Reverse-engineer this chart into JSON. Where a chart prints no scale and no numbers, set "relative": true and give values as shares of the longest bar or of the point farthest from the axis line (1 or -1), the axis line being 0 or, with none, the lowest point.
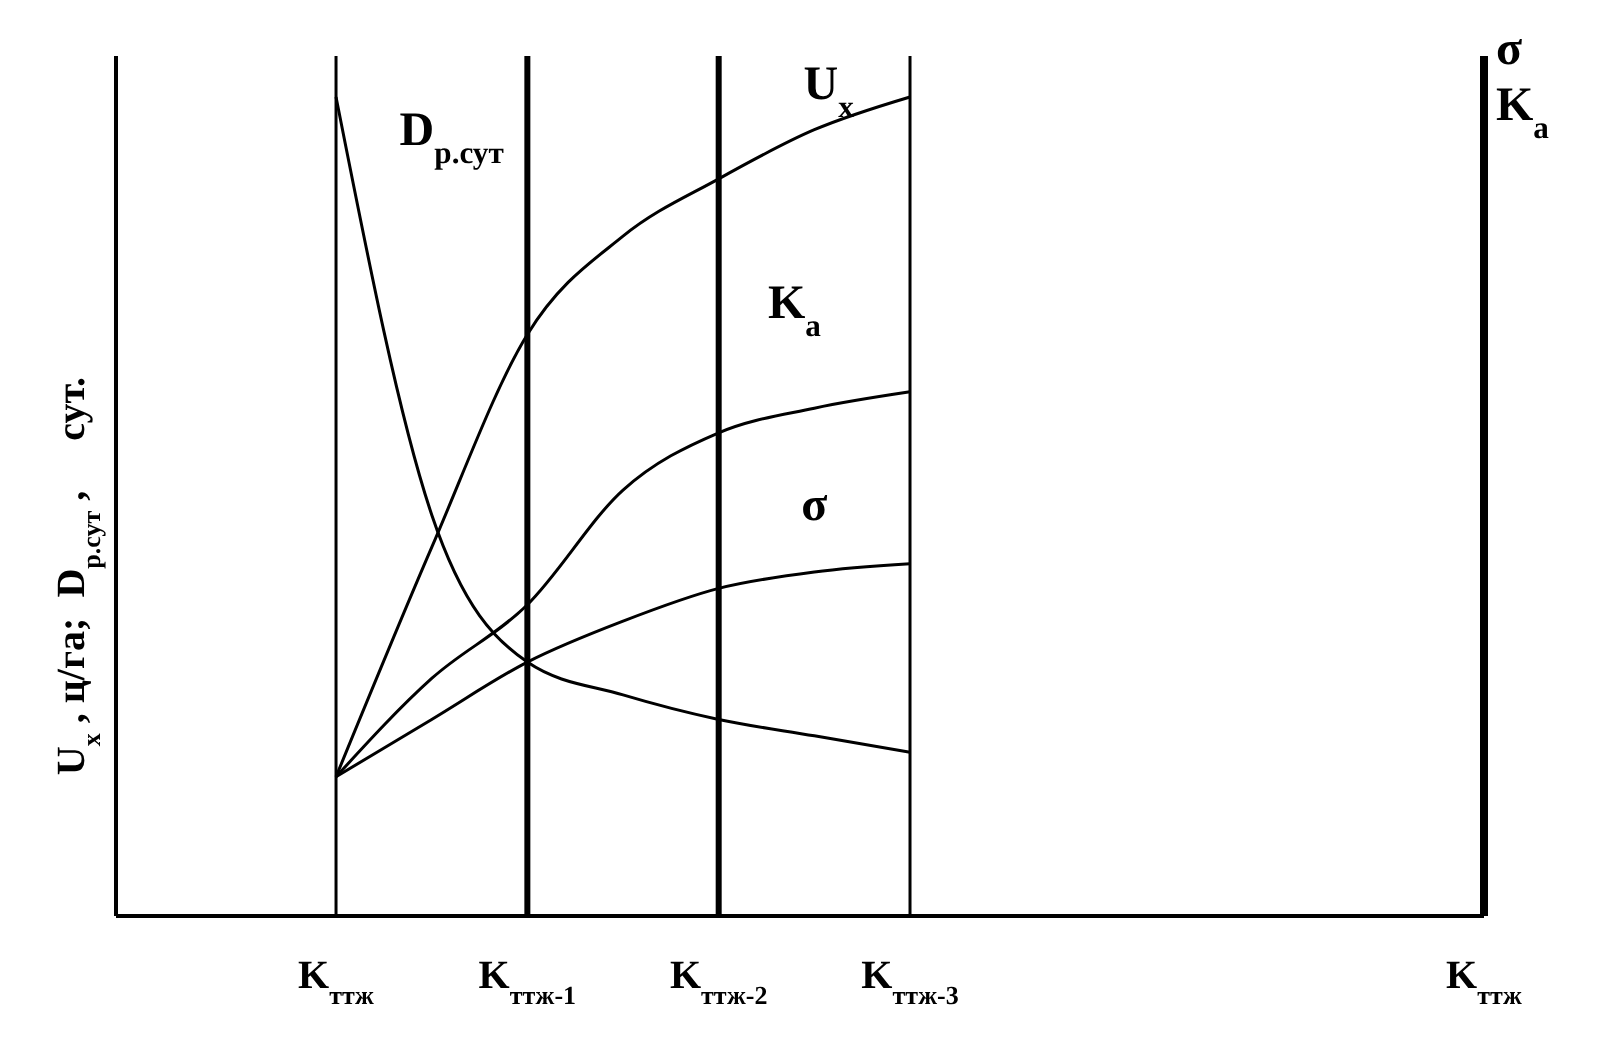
{
  "chart_data": {
    "type": "line",
    "relative": true,
    "xlabel": null,
    "ylabel": "U$_{x}$ , ц/га;  D$_{р.сут}$ ,     сут.",
    "y2label": "σ K$_{a}$",
    "categories": [
      "K$_{ттж}$",
      null,
      "K$_{ттж-1}$",
      null,
      "K$_{ттж-2}$",
      null,
      "K$_{ттж-3}$",
      null,
      null,
      null,
      null,
      null,
      "K$_{ттж}$"
    ],
    "series": [
      {
        "name": "U$_{x}$",
        "color": "#000000",
        "values": [
          0.17,
          0.45,
          0.71,
          0.83,
          0.9,
          0.96,
          1.0,
          null,
          null,
          null,
          null,
          null,
          null
        ]
      },
      {
        "name": "K$_{a}$",
        "color": "#000000",
        "values": [
          0.17,
          0.29,
          0.38,
          0.52,
          0.59,
          0.62,
          0.64,
          null,
          null,
          null,
          null,
          null,
          null
        ]
      },
      {
        "name": "σ",
        "color": "#000000",
        "values": [
          0.17,
          0.24,
          0.31,
          0.36,
          0.4,
          0.42,
          0.43,
          null,
          null,
          null,
          null,
          null,
          null
        ]
      },
      {
        "name": "D$_{р.сут}$",
        "color": "#000000",
        "values": [
          1.0,
          0.49,
          0.31,
          0.27,
          0.24,
          0.22,
          0.2,
          null,
          null,
          null,
          null,
          null,
          null
        ]
      }
    ],
    "ref_lines": [
      {
        "axis": "x",
        "value": "K$_{ттж}$"
      },
      {
        "axis": "x",
        "value": "K$_{ттж-1}$"
      },
      {
        "axis": "x",
        "value": "K$_{ттж-2}$"
      },
      {
        "axis": "x",
        "value": "K$_{ттж-3}$"
      }
    ],
    "grid": false,
    "legend": false,
    "marker": "none",
    "line_style": "solid"
  }
}
